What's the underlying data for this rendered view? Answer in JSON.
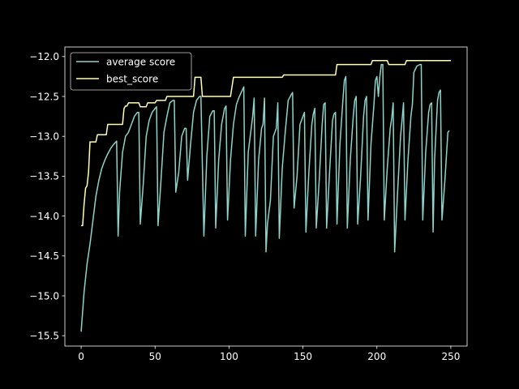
{
  "chart_data": {
    "type": "line",
    "title": "",
    "xlabel": "",
    "ylabel": "",
    "xlim": [
      -11,
      261
    ],
    "ylim": [
      -15.63,
      -11.88
    ],
    "xticks": [
      0,
      50,
      100,
      150,
      200,
      250
    ],
    "yticks": [
      -15.5,
      -15.0,
      -14.5,
      -14.0,
      -13.5,
      -13.0,
      -12.5,
      -12.0
    ],
    "grid": false,
    "legend_position": "upper left",
    "background": "#000000",
    "series": [
      {
        "name": "average score",
        "color": "#8dd3c7",
        "points": [
          [
            0,
            -15.45
          ],
          [
            2,
            -14.95
          ],
          [
            4,
            -14.6
          ],
          [
            6,
            -14.35
          ],
          [
            8,
            -14.05
          ],
          [
            10,
            -13.75
          ],
          [
            12,
            -13.55
          ],
          [
            14,
            -13.4
          ],
          [
            16,
            -13.3
          ],
          [
            18,
            -13.22
          ],
          [
            20,
            -13.15
          ],
          [
            22,
            -13.1
          ],
          [
            24,
            -13.06
          ],
          [
            25,
            -14.25
          ],
          [
            26,
            -13.7
          ],
          [
            28,
            -13.2
          ],
          [
            30,
            -13.0
          ],
          [
            32,
            -12.95
          ],
          [
            34,
            -12.85
          ],
          [
            36,
            -12.75
          ],
          [
            38,
            -12.7
          ],
          [
            39,
            -12.7
          ],
          [
            40,
            -14.1
          ],
          [
            42,
            -13.6
          ],
          [
            44,
            -13.0
          ],
          [
            46,
            -12.8
          ],
          [
            48,
            -12.7
          ],
          [
            50,
            -12.65
          ],
          [
            51,
            -12.63
          ],
          [
            52,
            -14.12
          ],
          [
            54,
            -13.55
          ],
          [
            56,
            -12.95
          ],
          [
            58,
            -12.75
          ],
          [
            60,
            -12.58
          ],
          [
            62,
            -12.55
          ],
          [
            63,
            -12.55
          ],
          [
            64,
            -13.7
          ],
          [
            66,
            -13.45
          ],
          [
            68,
            -13.0
          ],
          [
            70,
            -12.9
          ],
          [
            71,
            -12.9
          ],
          [
            72,
            -13.55
          ],
          [
            74,
            -13.1
          ],
          [
            76,
            -12.7
          ],
          [
            78,
            -12.55
          ],
          [
            80,
            -12.5
          ],
          [
            81,
            -12.5
          ],
          [
            83,
            -14.25
          ],
          [
            85,
            -13.25
          ],
          [
            87,
            -12.75
          ],
          [
            89,
            -12.68
          ],
          [
            90,
            -12.68
          ],
          [
            91,
            -14.15
          ],
          [
            93,
            -13.3
          ],
          [
            95,
            -12.85
          ],
          [
            97,
            -12.65
          ],
          [
            98,
            -12.62
          ],
          [
            99,
            -14.05
          ],
          [
            101,
            -13.3
          ],
          [
            103,
            -12.85
          ],
          [
            105,
            -12.6
          ],
          [
            107,
            -12.5
          ],
          [
            109,
            -12.42
          ],
          [
            110,
            -12.38
          ],
          [
            111,
            -14.25
          ],
          [
            113,
            -13.2
          ],
          [
            115,
            -12.9
          ],
          [
            116,
            -12.75
          ],
          [
            117,
            -12.52
          ],
          [
            118,
            -14.25
          ],
          [
            120,
            -13.3
          ],
          [
            122,
            -12.9
          ],
          [
            123,
            -12.85
          ],
          [
            124,
            -12.52
          ],
          [
            125,
            -14.45
          ],
          [
            126,
            -14.1
          ],
          [
            128,
            -13.8
          ],
          [
            130,
            -13.0
          ],
          [
            131,
            -12.95
          ],
          [
            132,
            -12.9
          ],
          [
            133,
            -12.58
          ],
          [
            134,
            -14.28
          ],
          [
            136,
            -13.4
          ],
          [
            138,
            -12.95
          ],
          [
            140,
            -12.55
          ],
          [
            142,
            -12.48
          ],
          [
            143,
            -12.45
          ],
          [
            144,
            -13.9
          ],
          [
            146,
            -13.5
          ],
          [
            148,
            -12.85
          ],
          [
            150,
            -12.75
          ],
          [
            151,
            -12.7
          ],
          [
            152,
            -14.2
          ],
          [
            154,
            -13.45
          ],
          [
            156,
            -12.85
          ],
          [
            157,
            -12.72
          ],
          [
            158,
            -12.65
          ],
          [
            159,
            -14.15
          ],
          [
            161,
            -13.55
          ],
          [
            163,
            -12.85
          ],
          [
            164,
            -12.6
          ],
          [
            165,
            -12.58
          ],
          [
            166,
            -14.15
          ],
          [
            168,
            -13.45
          ],
          [
            170,
            -12.8
          ],
          [
            171,
            -12.72
          ],
          [
            172,
            -12.7
          ],
          [
            173,
            -14.1
          ],
          [
            175,
            -13.1
          ],
          [
            177,
            -12.55
          ],
          [
            178,
            -12.3
          ],
          [
            179,
            -12.25
          ],
          [
            180,
            -14.15
          ],
          [
            182,
            -13.3
          ],
          [
            184,
            -12.75
          ],
          [
            185,
            -12.55
          ],
          [
            186,
            -12.5
          ],
          [
            187,
            -14.1
          ],
          [
            189,
            -13.5
          ],
          [
            191,
            -12.75
          ],
          [
            192,
            -12.55
          ],
          [
            193,
            -12.5
          ],
          [
            194,
            -14.05
          ],
          [
            196,
            -13.1
          ],
          [
            198,
            -12.6
          ],
          [
            199,
            -12.3
          ],
          [
            200,
            -12.25
          ],
          [
            201,
            -12.5
          ],
          [
            202,
            -12.25
          ],
          [
            203,
            -12.1
          ],
          [
            204,
            -12.1
          ],
          [
            205,
            -14.05
          ],
          [
            207,
            -13.4
          ],
          [
            209,
            -12.9
          ],
          [
            210,
            -12.78
          ],
          [
            211,
            -12.58
          ],
          [
            212,
            -14.45
          ],
          [
            214,
            -13.7
          ],
          [
            216,
            -13.0
          ],
          [
            217,
            -12.8
          ],
          [
            218,
            -12.58
          ],
          [
            219,
            -14.05
          ],
          [
            221,
            -13.3
          ],
          [
            223,
            -12.75
          ],
          [
            224,
            -12.6
          ],
          [
            225,
            -12.2
          ],
          [
            227,
            -12.12
          ],
          [
            229,
            -12.1
          ],
          [
            230,
            -12.1
          ],
          [
            231,
            -14.05
          ],
          [
            233,
            -13.2
          ],
          [
            235,
            -12.7
          ],
          [
            236,
            -12.6
          ],
          [
            237,
            -12.58
          ],
          [
            238,
            -14.2
          ],
          [
            239,
            -13.3
          ],
          [
            241,
            -12.55
          ],
          [
            242,
            -12.45
          ],
          [
            243,
            -12.42
          ],
          [
            244,
            -14.05
          ],
          [
            246,
            -13.55
          ],
          [
            248,
            -12.95
          ],
          [
            249,
            -12.93
          ]
        ]
      },
      {
        "name": "best_score",
        "color": "#ffffb3",
        "points": [
          [
            0,
            -14.12
          ],
          [
            1,
            -14.12
          ],
          [
            2,
            -13.85
          ],
          [
            3,
            -13.65
          ],
          [
            4,
            -13.62
          ],
          [
            5,
            -13.45
          ],
          [
            6,
            -13.07
          ],
          [
            10,
            -13.07
          ],
          [
            11,
            -12.98
          ],
          [
            17,
            -12.98
          ],
          [
            18,
            -12.85
          ],
          [
            28,
            -12.85
          ],
          [
            29,
            -12.65
          ],
          [
            30,
            -12.62
          ],
          [
            31,
            -12.62
          ],
          [
            32,
            -12.58
          ],
          [
            39,
            -12.58
          ],
          [
            40,
            -12.63
          ],
          [
            44,
            -12.63
          ],
          [
            45,
            -12.58
          ],
          [
            50,
            -12.58
          ],
          [
            51,
            -12.55
          ],
          [
            57,
            -12.55
          ],
          [
            58,
            -12.5
          ],
          [
            76,
            -12.5
          ],
          [
            77,
            -12.26
          ],
          [
            81,
            -12.26
          ],
          [
            82,
            -12.5
          ],
          [
            101,
            -12.5
          ],
          [
            103,
            -12.26
          ],
          [
            136,
            -12.26
          ],
          [
            137,
            -12.23
          ],
          [
            172,
            -12.23
          ],
          [
            173,
            -12.1
          ],
          [
            196,
            -12.1
          ],
          [
            197,
            -12.05
          ],
          [
            207,
            -12.05
          ],
          [
            208,
            -12.1
          ],
          [
            219,
            -12.1
          ],
          [
            220,
            -12.05
          ],
          [
            250,
            -12.05
          ]
        ]
      }
    ]
  }
}
